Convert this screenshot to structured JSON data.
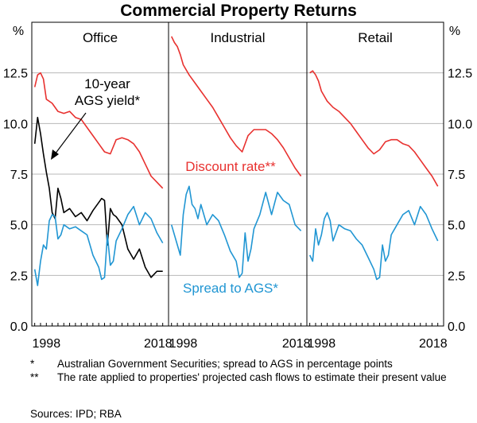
{
  "chart_data": {
    "type": "line",
    "title": "Commercial Property Returns",
    "y_unit_left": "%",
    "y_unit_right": "%",
    "ylim": [
      0,
      15
    ],
    "yticks": [
      "0.0",
      "2.5",
      "5.0",
      "7.5",
      "10.0",
      "12.5"
    ],
    "grid": true,
    "panels": [
      {
        "title": "Office",
        "x_tick_labels": [
          "1998",
          "2018"
        ],
        "series": [
          {
            "name": "Discount rate**",
            "color": "#e8312f",
            "x": [
              1996.0,
              1996.5,
              1997.0,
              1997.5,
              1998.0,
              1999.0,
              2000.0,
              2001.0,
              2002.0,
              2003.0,
              2004.0,
              2005.0,
              2006.0,
              2007.0,
              2008.0,
              2009.0,
              2010.0,
              2011.0,
              2012.0,
              2013.0,
              2014.0,
              2015.0,
              2016.0,
              2017.0,
              2018.0
            ],
            "values": [
              11.8,
              12.4,
              12.5,
              12.2,
              11.2,
              11.0,
              10.6,
              10.5,
              10.6,
              10.3,
              10.2,
              9.8,
              9.4,
              9.0,
              8.6,
              8.5,
              9.2,
              9.3,
              9.2,
              9.0,
              8.6,
              8.0,
              7.4,
              7.1,
              6.8
            ]
          },
          {
            "name": "10-year AGS yield*",
            "color": "#000000",
            "x": [
              1996.0,
              1996.5,
              1997.0,
              1997.5,
              1998.0,
              1998.5,
              1999.0,
              1999.5,
              2000.0,
              2000.5,
              2001.0,
              2002.0,
              2003.0,
              2004.0,
              2005.0,
              2006.0,
              2007.0,
              2007.5,
              2008.0,
              2008.5,
              2009.0,
              2009.5,
              2010.0,
              2011.0,
              2012.0,
              2013.0,
              2014.0,
              2015.0,
              2016.0,
              2017.0,
              2018.0
            ],
            "values": [
              9.0,
              10.3,
              9.5,
              8.5,
              7.6,
              6.8,
              5.6,
              5.3,
              6.8,
              6.3,
              5.6,
              5.8,
              5.4,
              5.6,
              5.2,
              5.7,
              6.1,
              6.3,
              6.2,
              4.0,
              5.8,
              5.5,
              5.4,
              5.0,
              3.8,
              3.3,
              3.8,
              2.9,
              2.4,
              2.7,
              2.7
            ]
          },
          {
            "name": "Spread to AGS*",
            "color": "#2196d3",
            "x": [
              1996.0,
              1996.5,
              1997.0,
              1997.5,
              1998.0,
              1998.5,
              1999.0,
              1999.5,
              2000.0,
              2000.5,
              2001.0,
              2002.0,
              2003.0,
              2004.0,
              2005.0,
              2006.0,
              2007.0,
              2007.5,
              2008.0,
              2008.5,
              2009.0,
              2009.5,
              2010.0,
              2011.0,
              2012.0,
              2013.0,
              2014.0,
              2015.0,
              2016.0,
              2017.0,
              2018.0
            ],
            "values": [
              2.8,
              2.0,
              3.2,
              4.0,
              3.8,
              5.2,
              5.5,
              5.4,
              4.3,
              4.5,
              5.0,
              4.8,
              4.9,
              4.7,
              4.5,
              3.5,
              2.9,
              2.3,
              2.4,
              4.5,
              3.0,
              3.2,
              4.2,
              4.8,
              5.5,
              5.9,
              5.0,
              5.6,
              5.3,
              4.6,
              4.1
            ]
          }
        ]
      },
      {
        "title": "Industrial",
        "x_tick_labels": [
          "1998",
          "2018"
        ],
        "series": [
          {
            "name": "Discount rate**",
            "color": "#e8312f",
            "x": [
              1996.0,
              1996.5,
              1997.0,
              1997.5,
              1998.0,
              1999.0,
              2000.0,
              2001.0,
              2002.0,
              2003.0,
              2004.0,
              2005.0,
              2006.0,
              2007.0,
              2008.0,
              2009.0,
              2010.0,
              2011.0,
              2012.0,
              2013.0,
              2014.0,
              2015.0,
              2016.0,
              2017.0,
              2018.0
            ],
            "values": [
              14.3,
              14.0,
              13.8,
              13.4,
              12.9,
              12.4,
              12.0,
              11.6,
              11.2,
              10.8,
              10.3,
              9.8,
              9.3,
              8.9,
              8.6,
              9.4,
              9.7,
              9.7,
              9.7,
              9.5,
              9.2,
              8.8,
              8.3,
              7.8,
              7.4
            ]
          },
          {
            "name": "Spread to AGS*",
            "color": "#2196d3",
            "x": [
              1996.0,
              1997.0,
              1997.5,
              1998.0,
              1998.5,
              1999.0,
              1999.5,
              2000.0,
              2000.5,
              2001.0,
              2002.0,
              2003.0,
              2004.0,
              2005.0,
              2006.0,
              2007.0,
              2007.5,
              2008.0,
              2008.5,
              2009.0,
              2009.5,
              2010.0,
              2011.0,
              2012.0,
              2013.0,
              2014.0,
              2015.0,
              2016.0,
              2017.0,
              2018.0
            ],
            "values": [
              5.0,
              4.0,
              3.5,
              5.5,
              6.5,
              6.9,
              6.0,
              5.8,
              5.3,
              6.0,
              5.0,
              5.5,
              5.2,
              4.5,
              3.7,
              3.2,
              2.4,
              2.6,
              4.6,
              3.2,
              3.8,
              4.8,
              5.5,
              6.6,
              5.5,
              6.6,
              6.2,
              6.0,
              5.0,
              4.7
            ]
          }
        ]
      },
      {
        "title": "Retail",
        "x_tick_labels": [
          "1998",
          "2018"
        ],
        "series": [
          {
            "name": "Discount rate**",
            "color": "#e8312f",
            "x": [
              1996.0,
              1996.5,
              1997.0,
              1997.5,
              1998.0,
              1999.0,
              2000.0,
              2001.0,
              2002.0,
              2003.0,
              2004.0,
              2005.0,
              2006.0,
              2007.0,
              2008.0,
              2009.0,
              2010.0,
              2011.0,
              2012.0,
              2013.0,
              2014.0,
              2015.0,
              2016.0,
              2017.0,
              2018.0
            ],
            "values": [
              12.5,
              12.6,
              12.4,
              12.1,
              11.6,
              11.1,
              10.8,
              10.6,
              10.3,
              10.0,
              9.6,
              9.2,
              8.8,
              8.5,
              8.7,
              9.1,
              9.2,
              9.2,
              9.0,
              8.9,
              8.6,
              8.2,
              7.8,
              7.4,
              6.9
            ]
          },
          {
            "name": "Spread to AGS*",
            "color": "#2196d3",
            "x": [
              1996.0,
              1996.5,
              1997.0,
              1997.5,
              1998.0,
              1998.5,
              1999.0,
              1999.5,
              2000.0,
              2000.5,
              2001.0,
              2002.0,
              2003.0,
              2004.0,
              2005.0,
              2006.0,
              2007.0,
              2007.5,
              2008.0,
              2008.5,
              2009.0,
              2009.5,
              2010.0,
              2011.0,
              2012.0,
              2013.0,
              2014.0,
              2015.0,
              2016.0,
              2017.0,
              2018.0
            ],
            "values": [
              3.5,
              3.2,
              4.8,
              4.0,
              4.5,
              5.3,
              5.6,
              5.2,
              4.2,
              4.6,
              5.0,
              4.8,
              4.7,
              4.3,
              4.0,
              3.4,
              2.8,
              2.3,
              2.4,
              4.0,
              3.2,
              3.5,
              4.5,
              5.0,
              5.5,
              5.7,
              5.0,
              5.9,
              5.5,
              4.8,
              4.2
            ]
          }
        ]
      }
    ],
    "annotations": {
      "ags_yield": [
        "10-year",
        "AGS yield*"
      ],
      "discount_rate": "Discount rate**",
      "spread": "Spread to AGS*"
    }
  },
  "notes": [
    {
      "mark": "*",
      "text": "Australian Government Securities; spread to AGS in percentage points"
    },
    {
      "mark": "**",
      "text": "The rate applied to properties' projected cash flows to estimate their present value"
    }
  ],
  "sources": "Sources: IPD; RBA"
}
